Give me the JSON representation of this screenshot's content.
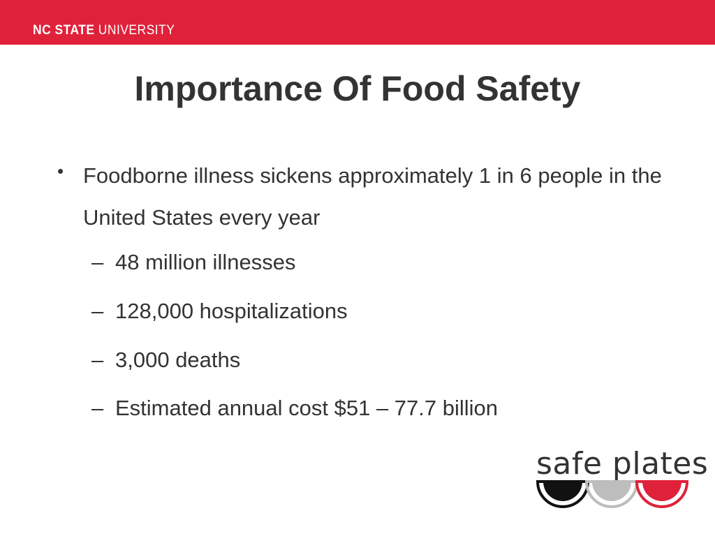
{
  "header": {
    "brand_bold": "NC STATE",
    "brand_regular": "UNIVERSITY",
    "bar_color": "#e0213a"
  },
  "slide": {
    "title": "Importance Of Food Safety",
    "bullet": "Foodborne illness sickens approximately 1 in 6 people in the United States every year",
    "sub_bullets": [
      "48 million illnesses",
      "128,000 hospitalizations",
      "3,000 deaths",
      "Estimated annual cost $51 – 77.7 billion"
    ]
  },
  "logo": {
    "text": "safe plates",
    "bowl_colors": [
      "#111111",
      "#bdbdbd",
      "#e0213a"
    ]
  }
}
